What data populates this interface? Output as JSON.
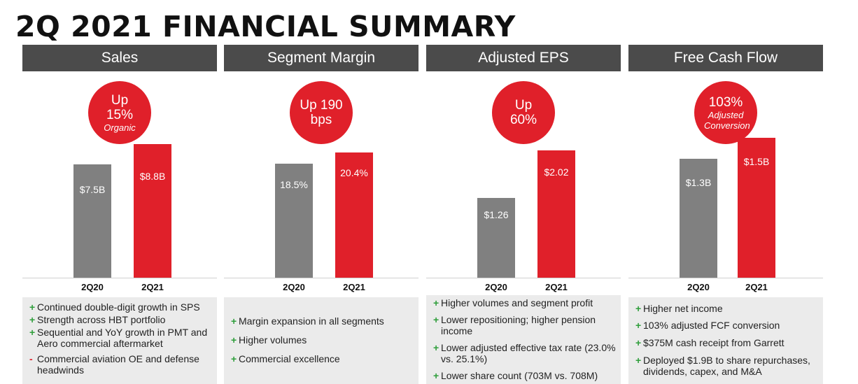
{
  "title": "2Q 2021 FINANCIAL SUMMARY",
  "colors": {
    "header_bg": "#4b4b4b",
    "accent_red": "#e0202a",
    "prior_gray": "#808080",
    "box_bg": "#ebebeb",
    "plus_green": "#2e9e3a"
  },
  "panels": [
    {
      "header": "Sales",
      "circle": {
        "line1": "Up",
        "line2": "15%",
        "note": "Organic"
      },
      "categories": [
        "2Q20",
        "2Q21"
      ],
      "bars": [
        {
          "label": "$7.5B",
          "value": 7.5
        },
        {
          "label": "$8.8B",
          "value": 8.8
        }
      ],
      "bullets": [
        {
          "sym": "+",
          "text": "Continued double-digit growth in SPS"
        },
        {
          "sym": "+",
          "text": "Strength across HBT portfolio"
        },
        {
          "sym": "+",
          "text": "Sequential and YoY growth in PMT and Aero commercial aftermarket"
        },
        {
          "sym": "-",
          "text": "Commercial aviation OE and defense headwinds"
        }
      ]
    },
    {
      "header": "Segment Margin",
      "circle": {
        "line1": "Up 190",
        "line2": "bps",
        "note": ""
      },
      "categories": [
        "2Q20",
        "2Q21"
      ],
      "bars": [
        {
          "label": "18.5%",
          "value": 18.5
        },
        {
          "label": "20.4%",
          "value": 20.4
        }
      ],
      "bullets": [
        {
          "sym": "+",
          "text": "Margin expansion in all segments"
        },
        {
          "sym": "+",
          "text": "Higher volumes"
        },
        {
          "sym": "+",
          "text": "Commercial excellence"
        }
      ]
    },
    {
      "header": "Adjusted EPS",
      "circle": {
        "line1": "Up",
        "line2": "60%",
        "note": ""
      },
      "categories": [
        "2Q20",
        "2Q21"
      ],
      "bars": [
        {
          "label": "$1.26",
          "value": 1.26
        },
        {
          "label": "$2.02",
          "value": 2.02
        }
      ],
      "bullets": [
        {
          "sym": "+",
          "text": "Higher volumes and segment profit"
        },
        {
          "sym": "+",
          "text": "Lower repositioning; higher pension income"
        },
        {
          "sym": "+",
          "text": "Lower adjusted effective tax rate (23.0% vs. 25.1%)"
        },
        {
          "sym": "+",
          "text": "Lower share count (703M vs. 708M)"
        }
      ]
    },
    {
      "header": "Free Cash Flow",
      "circle": {
        "line1": "103%",
        "line2": "",
        "note": "Adjusted Conversion"
      },
      "categories": [
        "2Q20",
        "2Q21"
      ],
      "bars": [
        {
          "label": "$1.3B",
          "value": 1.3
        },
        {
          "label": "$1.5B",
          "value": 1.5
        }
      ],
      "bullets": [
        {
          "sym": "+",
          "text": "Higher net income"
        },
        {
          "sym": "+",
          "text": "103% adjusted FCF conversion"
        },
        {
          "sym": "+",
          "text": "$375M cash receipt from Garrett"
        },
        {
          "sym": "+",
          "text": "Deployed $1.9B to share repurchases, dividends, capex, and M&A"
        }
      ]
    }
  ]
}
